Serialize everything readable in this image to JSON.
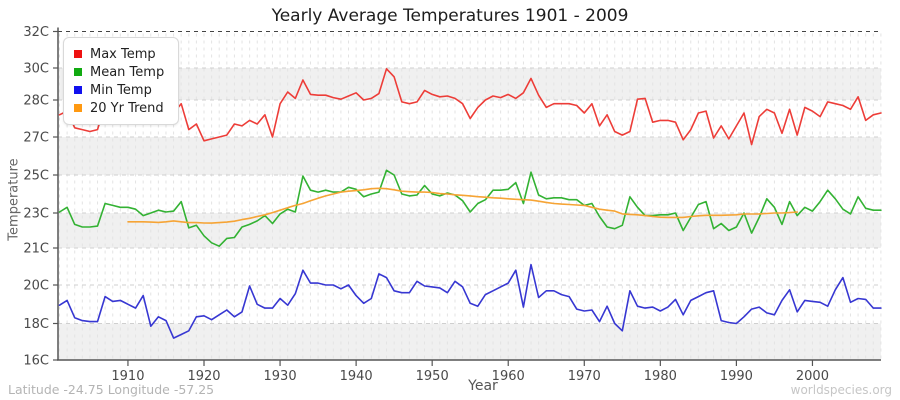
{
  "title": "Yearly Average Temperatures 1901 - 2009",
  "y_axis": {
    "label": "Temperature",
    "ticks": [
      {
        "label": "32C",
        "value": 32
      },
      {
        "label": "30C",
        "value": 30
      },
      {
        "label": "28C",
        "value": 28
      },
      {
        "label": "27C",
        "value": 27
      },
      {
        "label": "25C",
        "value": 25
      },
      {
        "label": "23C",
        "value": 23
      },
      {
        "label": "21C",
        "value": 21
      },
      {
        "label": "20C",
        "value": 20
      },
      {
        "label": "18C",
        "value": 18
      },
      {
        "label": "16C",
        "value": 16
      }
    ]
  },
  "x_axis": {
    "label": "Year",
    "ticks": [
      1910,
      1920,
      1930,
      1940,
      1950,
      1960,
      1970,
      1980,
      1990,
      2000
    ]
  },
  "legend": {
    "items": [
      {
        "label": "Max Temp",
        "swatch_color": "#ee1111"
      },
      {
        "label": "Mean Temp",
        "swatch_color": "#11aa11"
      },
      {
        "label": "Min Temp",
        "swatch_color": "#1111ee"
      },
      {
        "label": "20 Yr Trend",
        "swatch_color": "#ff9911"
      }
    ]
  },
  "footer": {
    "left": "Latitude -24.75 Longitude -57.25",
    "right": "worldspecies.org"
  },
  "colors": {
    "max": "#ed3d38",
    "mean": "#33b233",
    "min": "#3737d2",
    "trend": "#f6a435",
    "band_gray": "#f0f0f0",
    "grid_vertical": "#e3e3e3",
    "grid_horizontal": "#cfcfcf",
    "grid_top": "#444444",
    "axis": "#555555"
  },
  "chart_data": {
    "type": "line",
    "title": "Yearly Average Temperatures 1901 - 2009",
    "xlabel": "Year",
    "ylabel": "Temperature",
    "x_start": 1901,
    "x_end": 2009,
    "y_tick_values": [
      32,
      30,
      28,
      27,
      25,
      23,
      21,
      20,
      18,
      16
    ],
    "gray_bands": [
      [
        30,
        28
      ],
      [
        27,
        25
      ],
      [
        23,
        21
      ],
      [
        18,
        16
      ]
    ],
    "legend_position": "top-left",
    "series": [
      {
        "name": "Max Temp",
        "color": "#ed3d38",
        "start_year": 1901,
        "values": [
          27.6,
          27.7,
          27.25,
          27.2,
          27.15,
          27.2,
          27.85,
          27.7,
          27.65,
          27.7,
          27.65,
          27.4,
          27.6,
          27.7,
          27.6,
          27.65,
          27.9,
          27.2,
          27.35,
          26.8,
          26.9,
          27.0,
          27.05,
          27.35,
          27.3,
          27.45,
          27.35,
          27.6,
          27.0,
          27.9,
          28.5,
          28.1,
          29.25,
          28.35,
          28.3,
          28.3,
          28.15,
          28.05,
          28.25,
          28.45,
          28.0,
          28.1,
          28.4,
          29.95,
          29.45,
          27.95,
          27.9,
          27.95,
          28.6,
          28.35,
          28.2,
          28.25,
          28.1,
          27.9,
          27.5,
          27.8,
          28.0,
          28.25,
          28.15,
          28.35,
          28.1,
          28.45,
          29.35,
          28.3,
          27.8,
          27.9,
          27.9,
          27.9,
          27.85,
          27.65,
          27.9,
          27.3,
          27.6,
          27.15,
          27.05,
          27.15,
          28.05,
          28.1,
          27.4,
          27.45,
          27.45,
          27.4,
          26.85,
          27.2,
          27.65,
          27.7,
          26.95,
          27.3,
          26.9,
          27.3,
          27.65,
          26.6,
          27.55,
          27.75,
          27.65,
          27.1,
          27.75,
          27.05,
          27.8,
          27.7,
          27.55,
          27.95,
          27.9,
          27.85,
          27.75,
          28.2,
          27.45,
          27.6,
          27.65
        ]
      },
      {
        "name": "Mean Temp",
        "color": "#33b233",
        "start_year": 1901,
        "values": [
          23.05,
          23.3,
          22.35,
          22.2,
          22.2,
          22.25,
          23.5,
          23.4,
          23.3,
          23.3,
          23.2,
          22.85,
          23.0,
          23.15,
          23.05,
          23.1,
          23.6,
          22.15,
          22.3,
          21.7,
          21.3,
          21.1,
          21.55,
          21.6,
          22.2,
          22.35,
          22.55,
          22.85,
          22.4,
          22.95,
          23.2,
          23.05,
          24.95,
          24.2,
          24.1,
          24.2,
          24.1,
          24.1,
          24.35,
          24.25,
          23.85,
          24.0,
          24.1,
          25.25,
          25.0,
          24.0,
          23.9,
          23.95,
          24.45,
          24.0,
          23.9,
          24.05,
          23.95,
          23.65,
          23.05,
          23.5,
          23.7,
          24.2,
          24.2,
          24.25,
          24.6,
          23.5,
          25.15,
          23.95,
          23.75,
          23.8,
          23.8,
          23.7,
          23.7,
          23.4,
          23.5,
          22.8,
          22.2,
          22.1,
          22.3,
          23.85,
          23.3,
          22.85,
          22.85,
          22.9,
          22.9,
          23.0,
          22.0,
          22.75,
          23.45,
          23.6,
          22.1,
          22.4,
          22.0,
          22.2,
          23.0,
          21.85,
          22.75,
          23.75,
          23.3,
          22.35,
          23.6,
          22.85,
          23.3,
          23.1,
          23.6,
          24.2,
          23.75,
          23.2,
          22.95,
          23.85,
          23.25,
          23.15,
          23.15
        ]
      },
      {
        "name": "Min Temp",
        "color": "#3737d2",
        "start_year": 1901,
        "values": [
          18.95,
          19.2,
          18.3,
          18.15,
          18.1,
          18.1,
          19.4,
          19.15,
          19.2,
          19.0,
          18.8,
          19.45,
          17.85,
          18.35,
          18.15,
          17.2,
          17.4,
          17.6,
          18.35,
          18.4,
          18.2,
          18.45,
          18.7,
          18.35,
          18.6,
          19.95,
          19.0,
          18.8,
          18.8,
          19.3,
          18.95,
          19.55,
          20.4,
          20.05,
          20.05,
          20.0,
          20.0,
          19.8,
          20.0,
          19.45,
          19.05,
          19.3,
          20.3,
          20.2,
          19.7,
          19.6,
          19.6,
          20.1,
          19.95,
          19.9,
          19.85,
          19.6,
          20.1,
          19.9,
          19.05,
          18.9,
          19.5,
          19.7,
          19.9,
          20.05,
          20.4,
          18.85,
          20.55,
          19.35,
          19.7,
          19.7,
          19.5,
          19.4,
          18.75,
          18.65,
          18.7,
          18.1,
          18.9,
          18.0,
          17.6,
          19.7,
          18.9,
          18.8,
          18.85,
          18.65,
          18.85,
          19.25,
          18.45,
          19.2,
          19.4,
          19.6,
          19.7,
          18.15,
          18.05,
          18.0,
          18.35,
          18.75,
          18.85,
          18.55,
          18.45,
          19.2,
          19.75,
          18.6,
          19.2,
          19.15,
          19.1,
          18.9,
          19.75,
          20.2,
          19.1,
          19.3,
          19.25,
          18.8,
          18.8
        ]
      },
      {
        "name": "20 Yr Trend",
        "color": "#f6a435",
        "start_year": 1910,
        "values": [
          22.5,
          22.5,
          22.5,
          22.48,
          22.46,
          22.5,
          22.55,
          22.5,
          22.45,
          22.45,
          22.43,
          22.42,
          22.45,
          22.48,
          22.53,
          22.62,
          22.7,
          22.8,
          22.9,
          23.02,
          23.15,
          23.28,
          23.4,
          23.5,
          23.65,
          23.78,
          23.9,
          24.0,
          24.1,
          24.15,
          24.18,
          24.22,
          24.28,
          24.3,
          24.28,
          24.22,
          24.15,
          24.12,
          24.1,
          24.1,
          24.08,
          24.02,
          24.0,
          23.96,
          23.93,
          23.9,
          23.86,
          23.83,
          23.8,
          23.78,
          23.75,
          23.72,
          23.7,
          23.68,
          23.62,
          23.56,
          23.5,
          23.47,
          23.45,
          23.42,
          23.4,
          23.3,
          23.2,
          23.15,
          23.1,
          22.95,
          22.92,
          22.9,
          22.85,
          22.8,
          22.76,
          22.75,
          22.75,
          22.75,
          22.8,
          22.84,
          22.87,
          22.87,
          22.87,
          22.88,
          22.9,
          22.94,
          22.94,
          22.95,
          22.97,
          23.0,
          23.0,
          23.02,
          23.05
        ]
      }
    ]
  }
}
